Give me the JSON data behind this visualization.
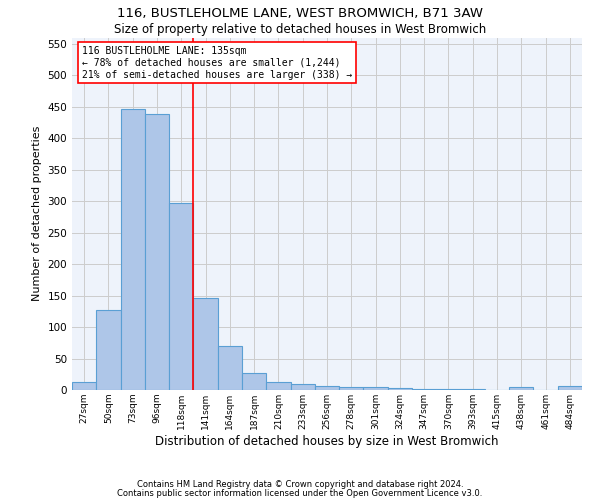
{
  "title1": "116, BUSTLEHOLME LANE, WEST BROMWICH, B71 3AW",
  "title2": "Size of property relative to detached houses in West Bromwich",
  "xlabel": "Distribution of detached houses by size in West Bromwich",
  "ylabel": "Number of detached properties",
  "annotation_line1": "116 BUSTLEHOLME LANE: 135sqm",
  "annotation_line2": "← 78% of detached houses are smaller (1,244)",
  "annotation_line3": "21% of semi-detached houses are larger (338) →",
  "categories": [
    "27sqm",
    "50sqm",
    "73sqm",
    "96sqm",
    "118sqm",
    "141sqm",
    "164sqm",
    "187sqm",
    "210sqm",
    "233sqm",
    "256sqm",
    "278sqm",
    "301sqm",
    "324sqm",
    "347sqm",
    "370sqm",
    "393sqm",
    "415sqm",
    "438sqm",
    "461sqm",
    "484sqm"
  ],
  "values": [
    13,
    127,
    447,
    438,
    297,
    146,
    70,
    27,
    13,
    10,
    7,
    5,
    4,
    3,
    1,
    1,
    1,
    0,
    5,
    0,
    6
  ],
  "bar_color": "#aec6e8",
  "bar_edge_color": "#5a9fd4",
  "grid_color": "#cccccc",
  "bg_color": "#eef3fb",
  "redline_x": 4.5,
  "ylim": [
    0,
    560
  ],
  "yticks": [
    0,
    50,
    100,
    150,
    200,
    250,
    300,
    350,
    400,
    450,
    500,
    550
  ],
  "footnote1": "Contains HM Land Registry data © Crown copyright and database right 2024.",
  "footnote2": "Contains public sector information licensed under the Open Government Licence v3.0."
}
